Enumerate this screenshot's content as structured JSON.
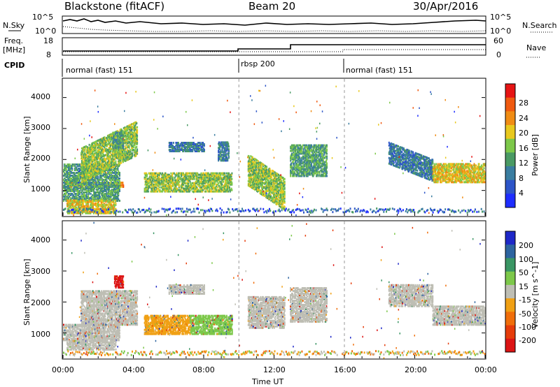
{
  "header": {
    "station": "Blackstone (fitACF)",
    "beam": "Beam 20",
    "date": "30/Apr/2016"
  },
  "aux": {
    "nsky_label": "N.Sky",
    "nsearch_label": "N.Search",
    "freq_label": "Freq.",
    "freq_unit": "[MHz]",
    "nave_label": "Nave",
    "cpid_label": "CPID",
    "noise_ticks_left": [
      "10^5",
      "10^0"
    ],
    "noise_ticks_right": [
      "10^5",
      "10^0"
    ],
    "freq_ticks": [
      "18",
      "8"
    ],
    "nave_ticks": [
      "60",
      "0"
    ],
    "cpid_segments": [
      {
        "label": "normal (fast) 151",
        "start_h": 0
      },
      {
        "label": "rbsp 200",
        "start_h": 10
      },
      {
        "label": "normal (fast) 151",
        "start_h": 16
      }
    ]
  },
  "chart_data": [
    {
      "type": "heatmap",
      "panel": "power",
      "ylabel": "Slant Range [km]",
      "xlabel": "",
      "xlim": [
        0,
        24
      ],
      "ylim": [
        180,
        4600
      ],
      "yticks": [
        "1000",
        "2000",
        "3000",
        "4000"
      ],
      "colorbar": {
        "label": "Power [dB]",
        "ticks": [
          "4",
          "8",
          "12",
          "16",
          "20",
          "24",
          "28"
        ],
        "colors": [
          "#1e2dff",
          "#2d55c8",
          "#3a7da0",
          "#4a9a64",
          "#7dc84a",
          "#e8c81e",
          "#f08c14",
          "#f05a10",
          "#e61414"
        ]
      },
      "regions": [
        {
          "t0": 0.0,
          "t1": 3.4,
          "r0": 1150,
          "r1": 1300,
          "level": 6,
          "slope": 0,
          "note": ""
        },
        {
          "t0": 0.0,
          "t1": 3.2,
          "r0": 700,
          "r1": 1900,
          "level": 3,
          "slope": 0
        },
        {
          "t0": 0.2,
          "t1": 3.0,
          "r0": 300,
          "r1": 750,
          "level": 5,
          "slope": 0
        },
        {
          "t0": 1.0,
          "t1": 4.2,
          "r0": 1300,
          "r1": 2400,
          "level": 4,
          "slope": 1
        },
        {
          "t0": 2.8,
          "t1": 3.4,
          "r0": 2400,
          "r1": 2900,
          "level": 3,
          "slope": 0
        },
        {
          "t0": 4.6,
          "t1": 9.6,
          "r0": 1000,
          "r1": 1600,
          "level": 4,
          "slope": 0
        },
        {
          "t0": 6.0,
          "t1": 8.0,
          "r0": 2300,
          "r1": 2600,
          "level": 2,
          "slope": 0
        },
        {
          "t0": 8.8,
          "t1": 9.4,
          "r0": 2000,
          "r1": 2600,
          "level": 2,
          "slope": 0
        },
        {
          "t0": 10.5,
          "t1": 12.6,
          "r0": 1200,
          "r1": 2200,
          "level": 4,
          "slope": -1
        },
        {
          "t0": 12.9,
          "t1": 15.0,
          "r0": 1500,
          "r1": 2500,
          "level": 3,
          "slope": 0
        },
        {
          "t0": 18.5,
          "t1": 21.0,
          "r0": 1900,
          "r1": 2600,
          "level": 2,
          "slope": -1
        },
        {
          "t0": 21.0,
          "t1": 24.0,
          "r0": 1300,
          "r1": 1900,
          "level": 5,
          "slope": 0
        }
      ]
    },
    {
      "type": "heatmap",
      "panel": "velocity",
      "ylabel": "Slant Range [km]",
      "xlabel": "Time UT",
      "xlim": [
        0,
        24
      ],
      "ylim": [
        180,
        4600
      ],
      "yticks": [
        "1000",
        "2000",
        "3000",
        "4000"
      ],
      "xticks": [
        "00:00",
        "04:00",
        "08:00",
        "12:00",
        "16:00",
        "20:00",
        "00:00"
      ],
      "colorbar": {
        "label": "Velocity [m s^-1]",
        "ticks": [
          "200",
          "100",
          "50",
          "15",
          "-15",
          "-50",
          "-100",
          "-200"
        ],
        "colors": [
          "#1e28c8",
          "#2d64a0",
          "#3a9664",
          "#7dc84a",
          "#bebeb4",
          "#f0a014",
          "#f06e0a",
          "#e63c0a",
          "#dc1414"
        ]
      },
      "regions": [
        {
          "t0": 0.0,
          "t1": 3.2,
          "r0": 800,
          "r1": 1300,
          "color": "#bebeb4"
        },
        {
          "t0": 0.2,
          "t1": 3.0,
          "r0": 500,
          "r1": 800,
          "color": "#bebeb4"
        },
        {
          "t0": 1.0,
          "t1": 4.2,
          "r0": 1300,
          "r1": 2400,
          "color": "#bebeb4"
        },
        {
          "t0": 2.9,
          "t1": 3.4,
          "r0": 2500,
          "r1": 2900,
          "color": "#dc1414"
        },
        {
          "t0": 4.6,
          "t1": 7.2,
          "r0": 1000,
          "r1": 1600,
          "color": "#f0a014"
        },
        {
          "t0": 7.2,
          "t1": 9.6,
          "r0": 1000,
          "r1": 1600,
          "color": "#7dc84a"
        },
        {
          "t0": 6.0,
          "t1": 8.0,
          "r0": 2300,
          "r1": 2600,
          "color": "#bebeb4"
        },
        {
          "t0": 10.5,
          "t1": 12.6,
          "r0": 1200,
          "r1": 2200,
          "color": "#bebeb4"
        },
        {
          "t0": 12.9,
          "t1": 15.0,
          "r0": 1400,
          "r1": 2500,
          "color": "#bebeb4"
        },
        {
          "t0": 18.5,
          "t1": 21.0,
          "r0": 1900,
          "r1": 2600,
          "color": "#bebeb4"
        },
        {
          "t0": 21.0,
          "t1": 24.0,
          "r0": 1300,
          "r1": 1900,
          "color": "#bebeb4"
        }
      ]
    }
  ]
}
